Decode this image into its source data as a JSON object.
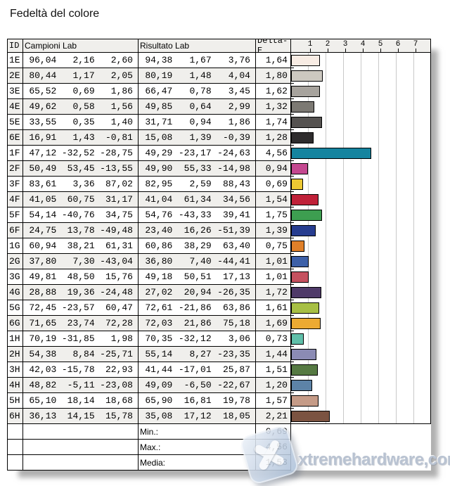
{
  "title": "Fedeltà del colore",
  "table": {
    "headers": {
      "id": "ID",
      "campioni": "Campioni Lab",
      "risultato": "Risultato Lab",
      "delta": "Delta-E"
    },
    "axis_ticks": [
      "1",
      "2",
      "3",
      "4",
      "5",
      "6",
      "7"
    ],
    "rows": [
      {
        "id": "1E",
        "campioni": [
          "96,04",
          "2,16",
          "2,60"
        ],
        "risultato": [
          "94,38",
          "1,67",
          "3,76"
        ],
        "delta": "1,64",
        "delta_value": 1.64,
        "color": "#f8ece4"
      },
      {
        "id": "2E",
        "campioni": [
          "80,44",
          "1,17",
          "2,05"
        ],
        "risultato": [
          "80,19",
          "1,48",
          "4,04"
        ],
        "delta": "1,80",
        "delta_value": 1.8,
        "color": "#ccc8c0"
      },
      {
        "id": "3E",
        "campioni": [
          "65,52",
          "0,69",
          "1,86"
        ],
        "risultato": [
          "66,47",
          "0,78",
          "3,45"
        ],
        "delta": "1,62",
        "delta_value": 1.62,
        "color": "#a7a39d"
      },
      {
        "id": "4E",
        "campioni": [
          "49,62",
          "0,58",
          "1,56"
        ],
        "risultato": [
          "49,85",
          "0,64",
          "2,99"
        ],
        "delta": "1,32",
        "delta_value": 1.32,
        "color": "#7c7973"
      },
      {
        "id": "5E",
        "campioni": [
          "33,55",
          "0,35",
          "1,40"
        ],
        "risultato": [
          "31,71",
          "0,94",
          "1,86"
        ],
        "delta": "1,74",
        "delta_value": 1.74,
        "color": "#555250"
      },
      {
        "id": "6E",
        "campioni": [
          "16,91",
          "1,43",
          "-0,81"
        ],
        "risultato": [
          "15,08",
          "1,39",
          "-0,39"
        ],
        "delta": "1,28",
        "delta_value": 1.28,
        "color": "#2e2c2d"
      },
      {
        "id": "1F",
        "campioni": [
          "47,12",
          "-32,52",
          "-28,75"
        ],
        "risultato": [
          "49,29",
          "-23,17",
          "-24,63"
        ],
        "delta": "4,56",
        "delta_value": 4.56,
        "color": "#15849f"
      },
      {
        "id": "2F",
        "campioni": [
          "50,49",
          "53,45",
          "-13,55"
        ],
        "risultato": [
          "49,90",
          "55,33",
          "-14,98"
        ],
        "delta": "0,94",
        "delta_value": 0.94,
        "color": "#c44890"
      },
      {
        "id": "3F",
        "campioni": [
          "83,61",
          "3,36",
          "87,02"
        ],
        "risultato": [
          "82,95",
          "2,59",
          "88,43"
        ],
        "delta": "0,69",
        "delta_value": 0.69,
        "color": "#edc833"
      },
      {
        "id": "4F",
        "campioni": [
          "41,05",
          "60,75",
          "31,17"
        ],
        "risultato": [
          "41,04",
          "61,34",
          "34,56"
        ],
        "delta": "1,54",
        "delta_value": 1.54,
        "color": "#c02139"
      },
      {
        "id": "5F",
        "campioni": [
          "54,14",
          "-40,76",
          "34,75"
        ],
        "risultato": [
          "54,76",
          "-43,33",
          "39,41"
        ],
        "delta": "1,75",
        "delta_value": 1.75,
        "color": "#3d9e50"
      },
      {
        "id": "6F",
        "campioni": [
          "24,75",
          "13,78",
          "-49,48"
        ],
        "risultato": [
          "23,40",
          "16,26",
          "-51,39"
        ],
        "delta": "1,39",
        "delta_value": 1.39,
        "color": "#273d90"
      },
      {
        "id": "1G",
        "campioni": [
          "60,94",
          "38,21",
          "61,31"
        ],
        "risultato": [
          "60,86",
          "38,29",
          "63,40"
        ],
        "delta": "0,75",
        "delta_value": 0.75,
        "color": "#e08029"
      },
      {
        "id": "2G",
        "campioni": [
          "37,80",
          "7,30",
          "-43,04"
        ],
        "risultato": [
          "36,80",
          "7,40",
          "-44,41"
        ],
        "delta": "1,01",
        "delta_value": 1.01,
        "color": "#3d60a8"
      },
      {
        "id": "3G",
        "campioni": [
          "49,81",
          "48,50",
          "15,76"
        ],
        "risultato": [
          "49,18",
          "50,51",
          "17,13"
        ],
        "delta": "1,01",
        "delta_value": 1.01,
        "color": "#c5515f"
      },
      {
        "id": "4G",
        "campioni": [
          "28,88",
          "19,36",
          "-24,48"
        ],
        "risultato": [
          "27,02",
          "20,94",
          "-26,35"
        ],
        "delta": "1,72",
        "delta_value": 1.72,
        "color": "#4f3a69"
      },
      {
        "id": "5G",
        "campioni": [
          "72,45",
          "-23,57",
          "60,47"
        ],
        "risultato": [
          "72,61",
          "-21,86",
          "63,86"
        ],
        "delta": "1,61",
        "delta_value": 1.61,
        "color": "#a7bf44"
      },
      {
        "id": "6G",
        "campioni": [
          "71,65",
          "23,74",
          "72,28"
        ],
        "risultato": [
          "72,03",
          "21,86",
          "75,18"
        ],
        "delta": "1,69",
        "delta_value": 1.69,
        "color": "#ecaa33"
      },
      {
        "id": "1H",
        "campioni": [
          "70,19",
          "-31,85",
          "1,98"
        ],
        "risultato": [
          "70,35",
          "-32,12",
          "3,06"
        ],
        "delta": "0,73",
        "delta_value": 0.73,
        "color": "#60bfa9"
      },
      {
        "id": "2H",
        "campioni": [
          "54,38",
          "8,84",
          "-25,71"
        ],
        "risultato": [
          "55,14",
          "8,27",
          "-23,35"
        ],
        "delta": "1,44",
        "delta_value": 1.44,
        "color": "#8b8bb4"
      },
      {
        "id": "3H",
        "campioni": [
          "42,03",
          "-15,78",
          "22,93"
        ],
        "risultato": [
          "41,44",
          "-17,01",
          "25,87"
        ],
        "delta": "1,51",
        "delta_value": 1.51,
        "color": "#567a43"
      },
      {
        "id": "4H",
        "campioni": [
          "48,82",
          "-5,11",
          "-23,08"
        ],
        "risultato": [
          "49,09",
          "-6,50",
          "-22,67"
        ],
        "delta": "1,20",
        "delta_value": 1.2,
        "color": "#5d83a7"
      },
      {
        "id": "5H",
        "campioni": [
          "65,10",
          "18,14",
          "18,68"
        ],
        "risultato": [
          "65,90",
          "16,81",
          "19,78"
        ],
        "delta": "1,57",
        "delta_value": 1.57,
        "color": "#c59b87"
      },
      {
        "id": "6H",
        "campioni": [
          "36,13",
          "14,15",
          "15,78"
        ],
        "risultato": [
          "35,08",
          "17,12",
          "18,05"
        ],
        "delta": "2,21",
        "delta_value": 2.21,
        "color": "#7b5341"
      }
    ],
    "footer": [
      {
        "label": "Min.:",
        "value": "0,69"
      },
      {
        "label": "Max.:",
        "value": "4,56"
      },
      {
        "label": "Media:",
        "value": "1,53"
      }
    ]
  },
  "watermark": {
    "text": "xtremehardware,com"
  },
  "chart_data": {
    "type": "bar",
    "title": "Fedeltà del colore",
    "orientation": "horizontal",
    "categories": [
      "1E",
      "2E",
      "3E",
      "4E",
      "5E",
      "6E",
      "1F",
      "2F",
      "3F",
      "4F",
      "5F",
      "6F",
      "1G",
      "2G",
      "3G",
      "4G",
      "5G",
      "6G",
      "1H",
      "2H",
      "3H",
      "4H",
      "5H",
      "6H"
    ],
    "values": [
      1.64,
      1.8,
      1.62,
      1.32,
      1.74,
      1.28,
      4.56,
      0.94,
      0.69,
      1.54,
      1.75,
      1.39,
      0.75,
      1.01,
      1.01,
      1.72,
      1.61,
      1.69,
      0.73,
      1.44,
      1.51,
      1.2,
      1.57,
      2.21
    ],
    "bar_colors": [
      "#f8ece4",
      "#ccc8c0",
      "#a7a39d",
      "#7c7973",
      "#555250",
      "#2e2c2d",
      "#15849f",
      "#c44890",
      "#edc833",
      "#c02139",
      "#3d9e50",
      "#273d90",
      "#e08029",
      "#3d60a8",
      "#c5515f",
      "#4f3a69",
      "#a7bf44",
      "#ecaa33",
      "#60bfa9",
      "#8b8bb4",
      "#567a43",
      "#5d83a7",
      "#c59b87",
      "#7b5341"
    ],
    "xlabel": "Delta-E",
    "ylabel": "ID",
    "xlim": [
      0,
      8
    ],
    "xticks": [
      1,
      2,
      3,
      4,
      5,
      6,
      7
    ],
    "grid": true,
    "legend": false,
    "stats": {
      "min": 0.69,
      "max": 4.56,
      "media": 1.53
    }
  }
}
